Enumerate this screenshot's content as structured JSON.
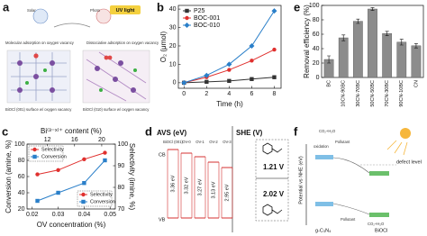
{
  "chart_data": [
    {
      "type": "line",
      "panel_label": "b",
      "xlabel": "Time (h)",
      "ylabel": "O₂ (μmol)",
      "x": [
        0,
        2,
        4,
        6,
        8
      ],
      "xlim": [
        -0.5,
        8.6
      ],
      "xticks": [
        0,
        2,
        4,
        6,
        8
      ],
      "ylim": [
        -3,
        42
      ],
      "yticks": [
        0,
        10,
        20,
        30,
        40
      ],
      "legend": "upper left",
      "series": [
        {
          "name": "P25",
          "color": "#333333",
          "marker": "square",
          "values": [
            0,
            0.5,
            1,
            2,
            3
          ]
        },
        {
          "name": "BOC-001",
          "color": "#e0302e",
          "marker": "circle",
          "values": [
            0,
            3,
            7,
            12,
            18
          ]
        },
        {
          "name": "BOC-010",
          "color": "#2a7fc9",
          "marker": "diamond",
          "values": [
            0,
            4,
            10,
            20,
            39
          ]
        }
      ]
    },
    {
      "type": "line",
      "panel_label": "c",
      "xlabel": "OV concentration (%)",
      "ylabel": "Conversion (amine, %)",
      "y2label": "Selectivity (imine, %)",
      "x2label": "Bi⁽³⁻ˣ⁾⁺ content (%)",
      "x": [
        0.022,
        0.03,
        0.04,
        0.048
      ],
      "xlim": [
        0.018,
        0.052
      ],
      "xticks": [
        0.02,
        0.03,
        0.04,
        0.05
      ],
      "x2lim": [
        9,
        22
      ],
      "x2ticks": [
        12,
        16,
        20
      ],
      "ylim": [
        20,
        100
      ],
      "yticks": [
        20,
        40,
        60,
        80,
        100
      ],
      "y2lim": [
        70,
        100
      ],
      "y2ticks": [
        70,
        80,
        90,
        100
      ],
      "series": [
        {
          "name": "Selectivity",
          "color": "#e0302e",
          "marker": "circle",
          "axis": "y2",
          "values": [
            86,
            88,
            93,
            96
          ]
        },
        {
          "name": "Conversion",
          "color": "#2a7fc9",
          "marker": "square",
          "values": [
            30,
            40,
            52,
            80
          ]
        }
      ]
    },
    {
      "type": "bar",
      "panel_label": "e",
      "ylabel": "Removal efficiency (%)",
      "categories": [
        "BC",
        "10CN-90BC",
        "30CN-70BC",
        "50CN-50BC",
        "70CN-30BC",
        "90CN-10BC",
        "CN"
      ],
      "values": [
        25,
        55,
        78,
        95,
        61,
        49,
        44
      ],
      "errors": [
        5,
        4,
        3,
        2,
        3,
        4,
        3
      ],
      "color": "#8c8c8c",
      "ylim": [
        0,
        100
      ],
      "yticks": [
        0,
        20,
        40,
        60,
        80,
        100
      ]
    }
  ],
  "diagrams": {
    "a": {
      "label": "a",
      "light": "UV light",
      "left_caption": "Molecular adsorption on oxygen vacancy",
      "right_caption": "Dissociative adsorption on oxygen vacancy",
      "bottom_left": "BiOCl (001) surface w/ oxygen vacancy",
      "bottom_right": "BiOCl (010) surface w/ oxygen vacancy",
      "left_tag": "Solar",
      "right_tag": "Photo"
    },
    "d": {
      "label": "d",
      "left_axis": "AVS (eV)",
      "right_axis": "SHE (V)",
      "cb": "CB",
      "vb": "VB",
      "columns": [
        "BiOCl (001)",
        "OV-0",
        "OV-1",
        "OV-2",
        "OV-3"
      ],
      "gaps": [
        "3.36 eV",
        "3.32 eV",
        "3.27 eV",
        "3.13 eV",
        "2.95 eV"
      ],
      "potentials": [
        "1.21 V",
        "2.02 V"
      ]
    },
    "f": {
      "label": "f",
      "axis": "Potential vs NHE (eV)",
      "top_product": "CO₂+H₂O",
      "top_pollutant": "Pollutant",
      "oxidation": "oxidation",
      "defect": "defect level",
      "bottom_pollutant": "Pollutant",
      "bottom_product": "CO₂+H₂O",
      "left_material": "g-C₃N₄",
      "right_material": "BiOCl"
    }
  }
}
